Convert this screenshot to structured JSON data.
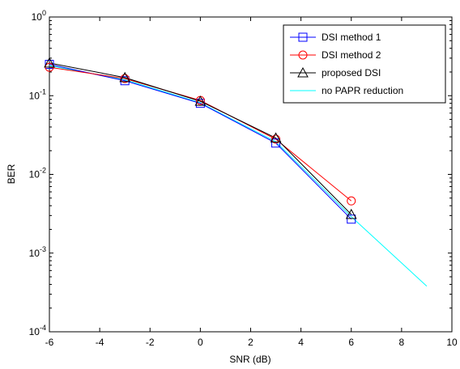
{
  "chart_data": {
    "type": "line",
    "title": "",
    "xlabel": "SNR (dB)",
    "ylabel": "BER",
    "xlim": [
      -6,
      10
    ],
    "ylim": [
      0.0001,
      1
    ],
    "yscale": "log",
    "xticks": [
      -6,
      -4,
      -2,
      0,
      2,
      4,
      6,
      8,
      10
    ],
    "xtick_labels": [
      "-6",
      "-4",
      "-2",
      "0",
      "2",
      "4",
      "6",
      "8",
      "10"
    ],
    "yticks": [
      1,
      0.1,
      0.01,
      0.001,
      0.0001
    ],
    "ytick_labels": [
      {
        "base": "10",
        "exp": "0"
      },
      {
        "base": "10",
        "exp": "-1"
      },
      {
        "base": "10",
        "exp": "-2"
      },
      {
        "base": "10",
        "exp": "-3"
      },
      {
        "base": "10",
        "exp": "-4"
      }
    ],
    "grid": false,
    "legend_position": "top-right",
    "series": [
      {
        "name": "DSI method 1",
        "color": "#0000ff",
        "marker": "square",
        "x": [
          -6,
          -3,
          0,
          3,
          6
        ],
        "y": [
          0.25,
          0.155,
          0.08,
          0.025,
          0.0027
        ]
      },
      {
        "name": "DSI method 2",
        "color": "#ff0000",
        "marker": "circle",
        "x": [
          -6,
          -3,
          0,
          3,
          6
        ],
        "y": [
          0.23,
          0.165,
          0.087,
          0.028,
          0.0046
        ]
      },
      {
        "name": "proposed DSI",
        "color": "#000000",
        "marker": "triangle",
        "x": [
          -6,
          -3,
          0,
          3,
          6
        ],
        "y": [
          0.26,
          0.17,
          0.085,
          0.029,
          0.0031
        ]
      },
      {
        "name": "no PAPR reduction",
        "color": "#00ffff",
        "marker": "none",
        "x": [
          -6,
          -3,
          0,
          3,
          6,
          9
        ],
        "y": [
          0.24,
          0.16,
          0.081,
          0.026,
          0.0029,
          0.00038
        ]
      }
    ]
  }
}
